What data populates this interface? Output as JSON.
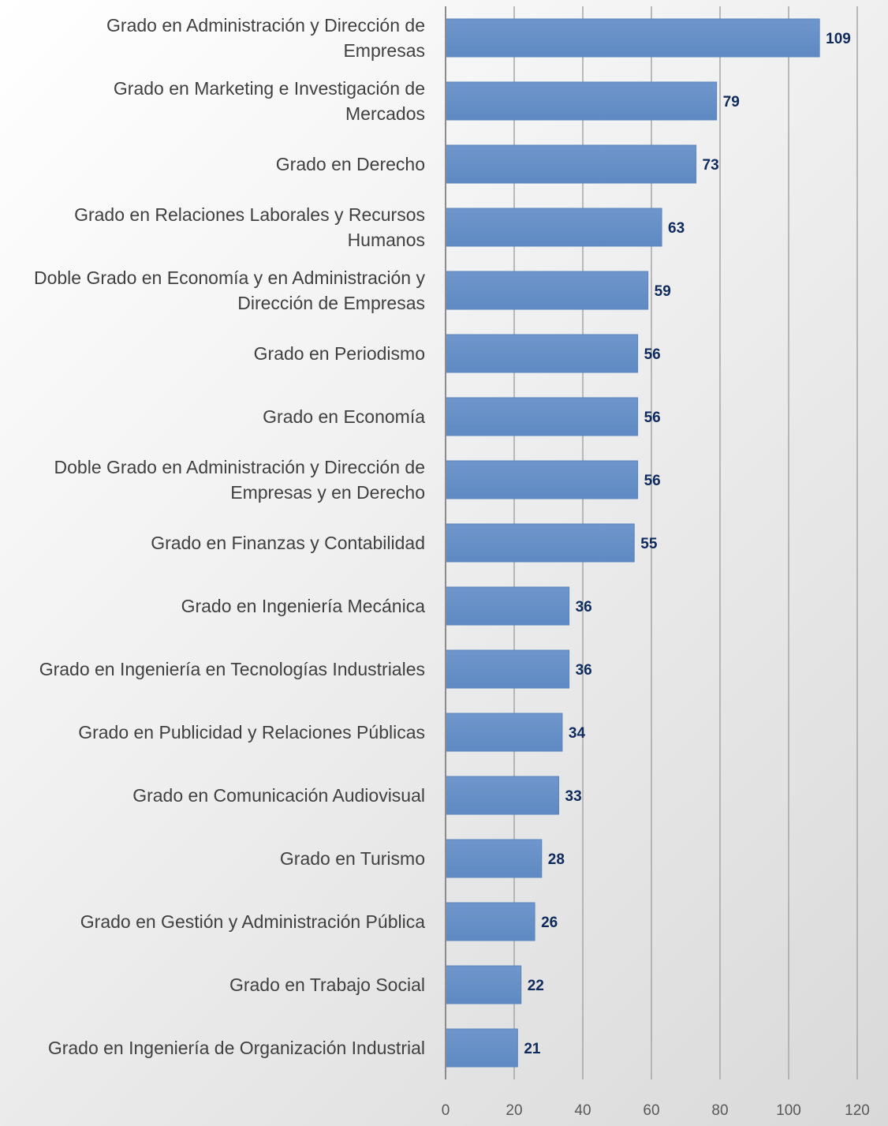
{
  "chart_data": {
    "type": "bar",
    "orientation": "horizontal",
    "categories": [
      [
        "Grado en Administración y Dirección de",
        "Empresas"
      ],
      [
        "Grado en Marketing e Investigación de",
        "Mercados"
      ],
      [
        "Grado en Derecho"
      ],
      [
        "Grado en Relaciones Laborales y Recursos",
        "Humanos"
      ],
      [
        "Doble Grado en Economía y en Administración y",
        "Dirección de Empresas"
      ],
      [
        "Grado en Periodismo"
      ],
      [
        "Grado en Economía"
      ],
      [
        "Doble Grado en Administración y Dirección de",
        "Empresas y en Derecho"
      ],
      [
        "Grado en Finanzas y Contabilidad"
      ],
      [
        "Grado en Ingeniería Mecánica"
      ],
      [
        "Grado en Ingeniería en Tecnologías Industriales"
      ],
      [
        "Grado en Publicidad y Relaciones Públicas"
      ],
      [
        "Grado en Comunicación Audiovisual"
      ],
      [
        "Grado en Turismo"
      ],
      [
        "Grado en Gestión y Administración Pública"
      ],
      [
        "Grado en Trabajo Social"
      ],
      [
        "Grado en Ingeniería de Organización Industrial"
      ]
    ],
    "values": [
      109,
      79,
      73,
      63,
      59,
      56,
      56,
      56,
      55,
      36,
      36,
      34,
      33,
      28,
      26,
      22,
      21
    ],
    "xlim": [
      0,
      120
    ],
    "xticks": [
      0,
      20,
      40,
      60,
      80,
      100,
      120
    ],
    "data_labels": true,
    "grid": "vertical",
    "legend": "none",
    "colors": {
      "bar": "#6690c8",
      "value_label": "#0f2a5c",
      "text": "#404040"
    }
  }
}
